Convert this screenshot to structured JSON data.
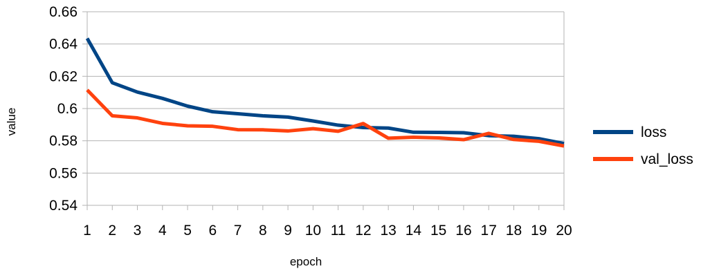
{
  "chart_data": {
    "type": "line",
    "title": "",
    "xlabel": "epoch",
    "ylabel": "value",
    "x": [
      "1",
      "2",
      "3",
      "4",
      "5",
      "6",
      "7",
      "8",
      "9",
      "10",
      "11",
      "12",
      "13",
      "14",
      "15",
      "16",
      "17",
      "18",
      "19",
      "20"
    ],
    "ylim": [
      0.54,
      0.66
    ],
    "yticks": [
      "0.54",
      "0.56",
      "0.58",
      "0.6",
      "0.62",
      "0.64",
      "0.66"
    ],
    "grid": true,
    "legend_position": "right",
    "series": [
      {
        "name": "loss",
        "color": "#004586",
        "values": [
          0.6435,
          0.616,
          0.6102,
          0.6063,
          0.6015,
          0.598,
          0.5968,
          0.5955,
          0.5947,
          0.5923,
          0.5897,
          0.5882,
          0.5879,
          0.5853,
          0.5852,
          0.585,
          0.5832,
          0.5828,
          0.5813,
          0.5783
        ]
      },
      {
        "name": "val_loss",
        "color": "#ff420e",
        "values": [
          0.6115,
          0.5955,
          0.5942,
          0.5908,
          0.5893,
          0.589,
          0.5869,
          0.5868,
          0.5861,
          0.5875,
          0.5859,
          0.5907,
          0.5816,
          0.5822,
          0.5818,
          0.5807,
          0.5846,
          0.5808,
          0.5797,
          0.5768
        ]
      }
    ]
  }
}
